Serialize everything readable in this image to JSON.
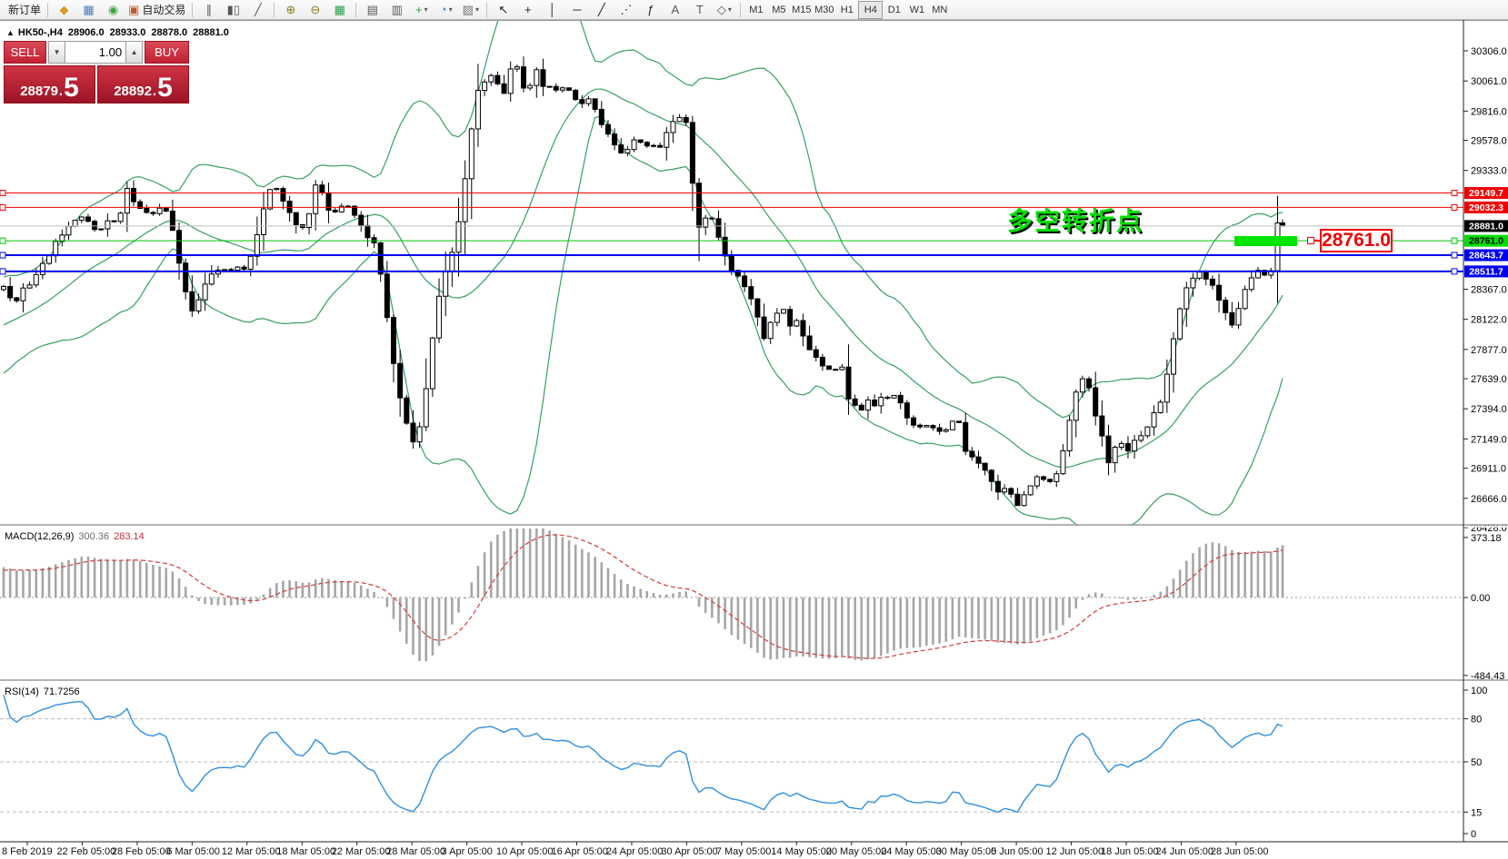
{
  "toolbar": {
    "groups": [
      {
        "items": [
          {
            "type": "text",
            "label": "新订单",
            "name": "new-order-button"
          }
        ]
      },
      {
        "items": [
          {
            "type": "icon",
            "glyph": "◆",
            "color": "#d99a1f",
            "name": "modify-order-icon"
          },
          {
            "type": "icon",
            "glyph": "▦",
            "color": "#4a7ebb",
            "name": "market-watch-icon"
          },
          {
            "type": "icon",
            "glyph": "◉",
            "color": "#3aa63a",
            "name": "signals-icon"
          },
          {
            "type": "icon-text",
            "glyph": "▣",
            "color": "#c05a2a",
            "label": "自动交易",
            "name": "auto-trading-button"
          }
        ]
      },
      {
        "items": [
          {
            "type": "icon",
            "glyph": "∥",
            "color": "#555555",
            "name": "bar-chart-mode-icon"
          },
          {
            "type": "icon",
            "glyph": "▮▯",
            "color": "#555555",
            "name": "candlestick-mode-icon"
          },
          {
            "type": "icon",
            "glyph": "╱",
            "color": "#555555",
            "name": "line-chart-mode-icon"
          }
        ]
      },
      {
        "items": [
          {
            "type": "icon",
            "glyph": "⊕",
            "color": "#8a7a20",
            "name": "zoom-in-icon"
          },
          {
            "type": "icon",
            "glyph": "⊖",
            "color": "#8a7a20",
            "name": "zoom-out-icon"
          },
          {
            "type": "icon",
            "glyph": "▦",
            "color": "#2a9d4e",
            "name": "tile-windows-icon"
          }
        ]
      },
      {
        "items": [
          {
            "type": "icon",
            "glyph": "▤",
            "color": "#555555",
            "name": "auto-arrange-icon"
          },
          {
            "type": "icon",
            "glyph": "▥",
            "color": "#555555",
            "name": "track-chart-icon"
          },
          {
            "type": "icon",
            "glyph": "+",
            "color": "#2a9d4e",
            "dd": true,
            "name": "templates-icon"
          },
          {
            "type": "icon",
            "glyph": "◔",
            "color": "#4a7ebb",
            "dd": true,
            "name": "periods-icon"
          },
          {
            "type": "icon",
            "glyph": "▨",
            "color": "#777777",
            "dd": true,
            "name": "indicators-icon"
          }
        ]
      },
      {
        "items": [
          {
            "type": "icon",
            "glyph": "↖",
            "color": "#222222",
            "name": "cursor-icon"
          },
          {
            "type": "icon",
            "glyph": "+",
            "color": "#222222",
            "name": "crosshair-icon"
          },
          {
            "type": "icon",
            "glyph": "│",
            "color": "#222222",
            "name": "vertical-line-icon"
          },
          {
            "type": "icon",
            "glyph": "─",
            "color": "#222222",
            "name": "horizontal-line-icon"
          },
          {
            "type": "icon",
            "glyph": "╱",
            "color": "#222222",
            "name": "trendline-icon"
          },
          {
            "type": "icon",
            "glyph": "⋰",
            "color": "#222222",
            "name": "equidistant-channel-icon"
          },
          {
            "type": "icon",
            "glyph": "ƒ",
            "color": "#222222",
            "name": "fibonacci-icon"
          },
          {
            "type": "icon",
            "glyph": "A",
            "color": "#555555",
            "name": "text-icon"
          },
          {
            "type": "icon",
            "glyph": "T",
            "color": "#555555",
            "name": "text-label-icon"
          },
          {
            "type": "icon",
            "glyph": "◇",
            "color": "#555555",
            "dd": true,
            "name": "arrows-icon"
          }
        ]
      }
    ],
    "timeframes": [
      "M1",
      "M5",
      "M15",
      "M30",
      "H1",
      "H4",
      "D1",
      "W1",
      "MN"
    ],
    "active_timeframe": "H4"
  },
  "chart_header": {
    "collapse": "▲",
    "symbol_period": "HK50-,H4",
    "open": "28906.0",
    "high": "28933.0",
    "low": "28878.0",
    "close": "28881.0"
  },
  "trade_panel": {
    "sell_label": "SELL",
    "buy_label": "BUY",
    "volume": "1.00",
    "down_arrow": "▼",
    "up_arrow": "▲",
    "sell_price": {
      "main": "28879",
      "dot": ".",
      "big": "5"
    },
    "buy_price": {
      "main": "28892",
      "dot": ".",
      "big": "5"
    }
  },
  "annotation": {
    "text": "多空转折点",
    "price_label": "28761.0",
    "text_color": "#00e000",
    "highlight_color": "#00e400"
  },
  "macd": {
    "label": "MACD(12,26,9)",
    "value1": "300.36",
    "value2": "283.14",
    "axis": [
      [
        "373.18",
        373.18
      ],
      [
        "0.00",
        0
      ],
      [
        "-484.43",
        -484.43
      ]
    ]
  },
  "rsi": {
    "label": "RSI(14)",
    "value": "71.7256",
    "axis": [
      [
        "100",
        100
      ],
      [
        "80",
        80
      ],
      [
        "50",
        50
      ],
      [
        "15",
        15
      ],
      [
        "0",
        0
      ]
    ],
    "levels": [
      80,
      50,
      15
    ]
  },
  "price_axis": {
    "ticks": [
      [
        "30306.0",
        30306
      ],
      [
        "30061.0",
        30061
      ],
      [
        "29816.0",
        29816
      ],
      [
        "29578.0",
        29578
      ],
      [
        "29333.0",
        29333
      ],
      [
        "28367.0",
        28367
      ],
      [
        "28122.0",
        28122
      ],
      [
        "27877.0",
        27877
      ],
      [
        "27639.0",
        27639
      ],
      [
        "27394.0",
        27394
      ],
      [
        "27149.0",
        27149
      ],
      [
        "26911.0",
        26911
      ],
      [
        "26666.0",
        26666
      ],
      [
        "26428.0",
        26428
      ]
    ],
    "tags": [
      {
        "label": "29149.7",
        "price": 29149.7,
        "line": "#f00000",
        "bg": "#f00000",
        "fg": "#ffffff",
        "lw": 1
      },
      {
        "label": "29032.3",
        "price": 29032.3,
        "line": "#f00000",
        "bg": "#f00000",
        "fg": "#ffffff",
        "lw": 1
      },
      {
        "label": "28881.0",
        "price": 28881.0,
        "line": "#bdbdbd",
        "bg": "#000000",
        "fg": "#ffffff",
        "lw": 1,
        "bid": true
      },
      {
        "label": "28761.0",
        "price": 28761.0,
        "line": "#00c400",
        "bg": "#00dd00",
        "fg": "#000000",
        "lw": 1
      },
      {
        "label": "28643.7",
        "price": 28643.7,
        "line": "#0000f0",
        "bg": "#0000f0",
        "fg": "#ffffff",
        "lw": 2
      },
      {
        "label": "28511.7",
        "price": 28511.7,
        "line": "#0000f0",
        "bg": "#0000f0",
        "fg": "#ffffff",
        "lw": 2
      }
    ]
  },
  "chart_data": {
    "type": "candlestick",
    "symbol": "HK50-",
    "timeframe": "H4",
    "title": "HK50-,H4",
    "ylim": [
      26200,
      30450
    ],
    "grid": false,
    "current_bar": {
      "open": 28906.0,
      "high": 28933.0,
      "low": 28878.0,
      "close": 28881.0
    },
    "indicators": [
      {
        "name": "Bollinger Bands",
        "period": 20,
        "deviation": 2,
        "color": "#35a060"
      },
      {
        "name": "MACD",
        "params": "12,26,9",
        "current": [
          300.36,
          283.14
        ],
        "range": [
          -484.43,
          373.18
        ]
      },
      {
        "name": "RSI",
        "period": 14,
        "current": 71.7256,
        "range": [
          0,
          100
        ]
      }
    ],
    "horizontal_levels": [
      29149.7,
      29032.3,
      28881.0,
      28761.0,
      28643.7,
      28511.7
    ],
    "x_labels": [
      "8 Feb 2019",
      "22 Feb 05:00",
      "28 Feb 05:00",
      "6 Mar 05:00",
      "12 Mar 05:00",
      "18 Mar 05:00",
      "22 Mar 05:00",
      "28 Mar 05:00",
      "3 Apr 05:00",
      "10 Apr 05:00",
      "16 Apr 05:00",
      "24 Apr 05:00",
      "30 Apr 05:00",
      "7 May 05:00",
      "14 May 05:00",
      "20 May 05:00",
      "24 May 05:00",
      "30 May 05:00",
      "5 Jun 05:00",
      "12 Jun 05:00",
      "18 Jun 05:00",
      "24 Jun 05:00",
      "28 Jun 05:00"
    ],
    "warmup": {
      "bars": 26,
      "start_price": 27480,
      "step": 36
    },
    "price_path": [
      [
        4,
        28400
      ],
      [
        14,
        28230
      ],
      [
        26,
        28365
      ],
      [
        38,
        28450
      ],
      [
        50,
        28600
      ],
      [
        60,
        28730
      ],
      [
        70,
        28820
      ],
      [
        80,
        28895
      ],
      [
        90,
        28950
      ],
      [
        100,
        28895
      ],
      [
        108,
        28840
      ],
      [
        116,
        28930
      ],
      [
        124,
        28895
      ],
      [
        132,
        28965
      ],
      [
        140,
        29175
      ],
      [
        148,
        29085
      ],
      [
        156,
        29025
      ],
      [
        164,
        28965
      ],
      [
        172,
        29010
      ],
      [
        180,
        29040
      ],
      [
        188,
        28895
      ],
      [
        196,
        28620
      ],
      [
        204,
        28365
      ],
      [
        212,
        28180
      ],
      [
        220,
        28290
      ],
      [
        228,
        28450
      ],
      [
        236,
        28510
      ],
      [
        244,
        28560
      ],
      [
        252,
        28510
      ],
      [
        260,
        28535
      ],
      [
        268,
        28525
      ],
      [
        276,
        28645
      ],
      [
        284,
        28840
      ],
      [
        292,
        29065
      ],
      [
        300,
        29245
      ],
      [
        308,
        29160
      ],
      [
        316,
        29010
      ],
      [
        324,
        28895
      ],
      [
        332,
        28865
      ],
      [
        340,
        28990
      ],
      [
        348,
        29245
      ],
      [
        356,
        29115
      ],
      [
        364,
        28950
      ],
      [
        372,
        29010
      ],
      [
        380,
        29065
      ],
      [
        388,
        29010
      ],
      [
        396,
        28895
      ],
      [
        404,
        28790
      ],
      [
        412,
        28730
      ],
      [
        420,
        28435
      ],
      [
        428,
        28030
      ],
      [
        436,
        27630
      ],
      [
        444,
        27370
      ],
      [
        452,
        27185
      ],
      [
        458,
        27050
      ],
      [
        464,
        27370
      ],
      [
        470,
        27630
      ],
      [
        476,
        27995
      ],
      [
        482,
        28290
      ],
      [
        488,
        28475
      ],
      [
        494,
        28600
      ],
      [
        500,
        28745
      ],
      [
        506,
        28950
      ],
      [
        512,
        29285
      ],
      [
        518,
        29650
      ],
      [
        524,
        29945
      ],
      [
        530,
        30070
      ],
      [
        536,
        30010
      ],
      [
        542,
        30145
      ],
      [
        548,
        30040
      ],
      [
        554,
        29945
      ],
      [
        560,
        30115
      ],
      [
        566,
        30290
      ],
      [
        572,
        30070
      ],
      [
        578,
        29970
      ],
      [
        584,
        30040
      ],
      [
        590,
        30145
      ],
      [
        596,
        30010
      ],
      [
        602,
        30040
      ],
      [
        608,
        29945
      ],
      [
        614,
        29995
      ],
      [
        622,
        30040
      ],
      [
        630,
        29925
      ],
      [
        638,
        29850
      ],
      [
        646,
        29925
      ],
      [
        654,
        29835
      ],
      [
        662,
        29705
      ],
      [
        670,
        29600
      ],
      [
        678,
        29525
      ],
      [
        686,
        29465
      ],
      [
        694,
        29555
      ],
      [
        702,
        29600
      ],
      [
        710,
        29525
      ],
      [
        718,
        29555
      ],
      [
        726,
        29525
      ],
      [
        734,
        29650
      ],
      [
        742,
        29760
      ],
      [
        750,
        29775
      ],
      [
        756,
        29690
      ],
      [
        762,
        29225
      ],
      [
        768,
        28895
      ],
      [
        772,
        28795
      ],
      [
        776,
        28930
      ],
      [
        780,
        29020
      ],
      [
        784,
        28945
      ],
      [
        788,
        28855
      ],
      [
        792,
        28770
      ],
      [
        796,
        28670
      ],
      [
        800,
        28575
      ],
      [
        804,
        28520
      ],
      [
        808,
        28600
      ],
      [
        812,
        28475
      ],
      [
        816,
        28340
      ],
      [
        820,
        28400
      ],
      [
        824,
        28295
      ],
      [
        828,
        28255
      ],
      [
        832,
        28155
      ],
      [
        836,
        28060
      ],
      [
        840,
        27960
      ],
      [
        844,
        28010
      ],
      [
        848,
        28105
      ],
      [
        852,
        28155
      ],
      [
        856,
        28195
      ],
      [
        860,
        28225
      ],
      [
        864,
        28150
      ],
      [
        868,
        28075
      ],
      [
        872,
        28045
      ],
      [
        876,
        28120
      ],
      [
        880,
        28180
      ],
      [
        884,
        27960
      ],
      [
        888,
        27865
      ],
      [
        892,
        27900
      ],
      [
        896,
        27840
      ],
      [
        900,
        27795
      ],
      [
        904,
        27755
      ],
      [
        908,
        27780
      ],
      [
        912,
        27725
      ],
      [
        916,
        27680
      ],
      [
        920,
        27740
      ],
      [
        924,
        27710
      ],
      [
        928,
        27770
      ],
      [
        932,
        27515
      ],
      [
        936,
        27445
      ],
      [
        940,
        27400
      ],
      [
        944,
        27430
      ],
      [
        948,
        27385
      ],
      [
        952,
        27445
      ],
      [
        956,
        27490
      ],
      [
        960,
        27460
      ],
      [
        964,
        27415
      ],
      [
        968,
        27515
      ],
      [
        972,
        27460
      ],
      [
        976,
        27490
      ],
      [
        980,
        27515
      ],
      [
        984,
        27490
      ],
      [
        988,
        27445
      ],
      [
        992,
        27415
      ],
      [
        996,
        27325
      ],
      [
        1000,
        27280
      ],
      [
        1004,
        27255
      ],
      [
        1013,
        27240
      ],
      [
        1022,
        27255
      ],
      [
        1030,
        27225
      ],
      [
        1038,
        27200
      ],
      [
        1046,
        27280
      ],
      [
        1054,
        27295
      ],
      [
        1062,
        27055
      ],
      [
        1070,
        27015
      ],
      [
        1077,
        26945
      ],
      [
        1085,
        26870
      ],
      [
        1093,
        26795
      ],
      [
        1100,
        26685
      ],
      [
        1108,
        26780
      ],
      [
        1114,
        26665
      ],
      [
        1121,
        26605
      ],
      [
        1127,
        26710
      ],
      [
        1133,
        26750
      ],
      [
        1140,
        26855
      ],
      [
        1147,
        26825
      ],
      [
        1154,
        26795
      ],
      [
        1160,
        26810
      ],
      [
        1167,
        26945
      ],
      [
        1173,
        27165
      ],
      [
        1180,
        27420
      ],
      [
        1188,
        27665
      ],
      [
        1196,
        27635
      ],
      [
        1205,
        27350
      ],
      [
        1213,
        27165
      ],
      [
        1220,
        26945
      ],
      [
        1228,
        27105
      ],
      [
        1236,
        27090
      ],
      [
        1243,
        27045
      ],
      [
        1251,
        27195
      ],
      [
        1258,
        27180
      ],
      [
        1266,
        27325
      ],
      [
        1273,
        27400
      ],
      [
        1280,
        27490
      ],
      [
        1287,
        27825
      ],
      [
        1294,
        28085
      ],
      [
        1300,
        28265
      ],
      [
        1306,
        28380
      ],
      [
        1312,
        28450
      ],
      [
        1318,
        28505
      ],
      [
        1324,
        28475
      ],
      [
        1330,
        28430
      ],
      [
        1336,
        28355
      ],
      [
        1342,
        28265
      ],
      [
        1348,
        28180
      ],
      [
        1354,
        28045
      ],
      [
        1360,
        28135
      ],
      [
        1366,
        28305
      ],
      [
        1372,
        28430
      ],
      [
        1379,
        28490
      ],
      [
        1386,
        28560
      ],
      [
        1393,
        28475
      ],
      [
        1400,
        28520
      ],
      [
        1406,
        28770
      ],
      [
        1411,
        28881
      ]
    ]
  }
}
